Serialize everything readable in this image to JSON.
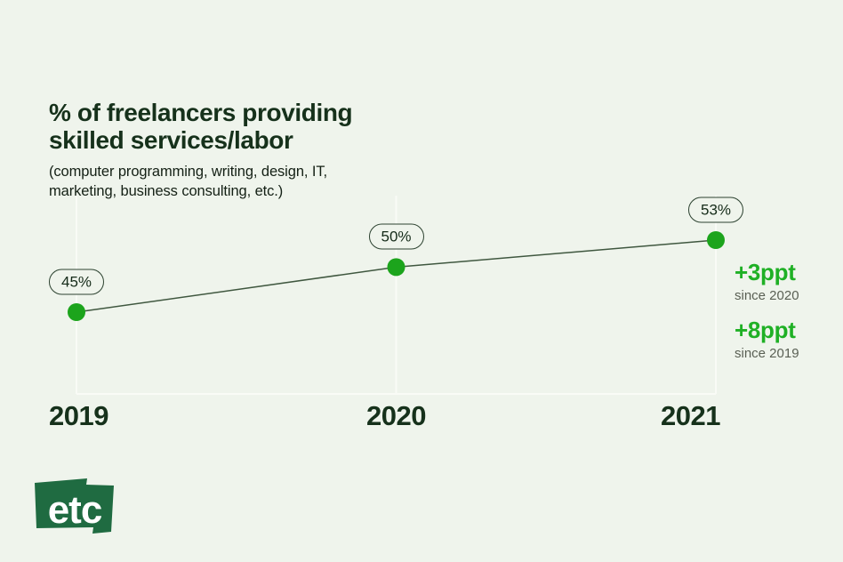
{
  "page": {
    "title_lines": [
      "% of freelancers providing",
      "skilled services/labor"
    ],
    "subtitle_lines": [
      "(computer programming, writing, design, IT,",
      "marketing, business consulting, etc.)"
    ]
  },
  "colors": {
    "background": "#eff4ec",
    "title": "#16311b",
    "subtitle": "#142015",
    "grid": "#f9fbf6",
    "line": "#3f573f",
    "dot": "#1ca41c",
    "accent_green": "#1fb025",
    "muted_gray": "#5a6054",
    "pill_border": "#2c4230",
    "pill_text": "#152b19",
    "logo_bg": "#1f6b41",
    "logo_text": "#ffffff"
  },
  "chart_data": {
    "type": "line",
    "title": "% of freelancers providing skilled services/labor",
    "subtitle": "(computer programming, writing, design, IT, marketing, business consulting, etc.)",
    "categories": [
      "2019",
      "2020",
      "2021"
    ],
    "values": [
      45,
      50,
      53
    ],
    "point_labels": [
      "45%",
      "50%",
      "53%"
    ],
    "xlabel": "",
    "ylabel": "",
    "ylim": [
      43,
      55
    ],
    "grid": "vertical-only",
    "legend": "none"
  },
  "annotations": [
    {
      "delta": "+3ppt",
      "caption": "since 2020"
    },
    {
      "delta": "+8ppt",
      "caption": "since 2019"
    }
  ],
  "logo": {
    "text": "etc"
  }
}
